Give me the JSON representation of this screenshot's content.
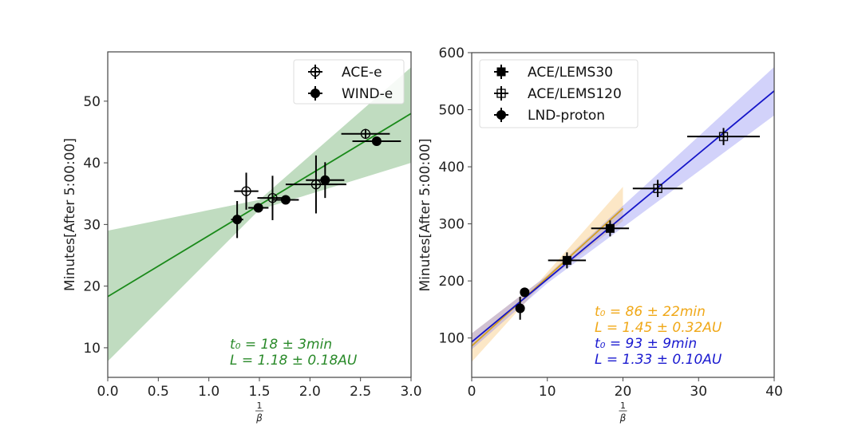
{
  "chart_data": [
    {
      "type": "scatter",
      "panel": "left",
      "xlabel_num": "1",
      "xlabel_den": "β",
      "ylabel": "Minutes[After 5:00:00]",
      "xlim": [
        0,
        3.0
      ],
      "ylim": [
        5.2,
        58
      ],
      "xticks": [
        0.0,
        0.5,
        1.0,
        1.5,
        2.0,
        2.5,
        3.0
      ],
      "xtick_labels": [
        "0.0",
        "0.5",
        "1.0",
        "1.5",
        "2.0",
        "2.5",
        "3.0"
      ],
      "yticks": [
        10,
        20,
        30,
        40,
        50
      ],
      "ytick_labels": [
        "10",
        "20",
        "30",
        "40",
        "50"
      ],
      "grid": false,
      "legend_position": "top-right",
      "series": [
        {
          "name": "ACE-e",
          "marker": "open-circle",
          "color": "#000000",
          "points": [
            {
              "x": 1.37,
              "y": 35.4,
              "xerr": 0.12,
              "yerr": 3.0
            },
            {
              "x": 1.63,
              "y": 34.3,
              "xerr": 0.15,
              "yerr": 3.6
            },
            {
              "x": 2.06,
              "y": 36.5,
              "xerr": 0.3,
              "yerr": 4.7
            },
            {
              "x": 2.55,
              "y": 44.7,
              "xerr": 0.24,
              "yerr": 0.8
            }
          ]
        },
        {
          "name": "WIND-e",
          "marker": "filled-circle",
          "color": "#000000",
          "points": [
            {
              "x": 1.28,
              "y": 30.8,
              "xerr": 0.06,
              "yerr": 3.0
            },
            {
              "x": 1.49,
              "y": 32.7,
              "xerr": 0.1,
              "yerr": 0.5
            },
            {
              "x": 1.76,
              "y": 34.0,
              "xerr": 0.13,
              "yerr": 0.4
            },
            {
              "x": 2.15,
              "y": 37.2,
              "xerr": 0.19,
              "yerr": 2.9
            },
            {
              "x": 2.66,
              "y": 43.5,
              "xerr": 0.24,
              "yerr": 0.5
            }
          ]
        }
      ],
      "fits": [
        {
          "name": "fit",
          "color": "#1a8a1a",
          "band_color": "#2e8b2e",
          "t0": 18.3,
          "slope": 9.9,
          "band": [
            {
              "x": 0,
              "lo": 7.8,
              "hi": 29.0
            },
            {
              "x": 1.5,
              "lo": 32.4,
              "hi": 34.0
            },
            {
              "x": 3.0,
              "lo": 40.0,
              "hi": 55.5
            }
          ]
        }
      ],
      "annotations": [
        {
          "text": "t₀ = 18 ± 3min",
          "color": "#2a8a2a"
        },
        {
          "text": "L = 1.18 ± 0.18AU",
          "color": "#2a8a2a"
        }
      ]
    },
    {
      "type": "scatter",
      "panel": "right",
      "xlabel_num": "1",
      "xlabel_den": "β",
      "ylabel": "Minutes[After 5:00:00]",
      "xlim": [
        0,
        40
      ],
      "ylim": [
        31,
        600
      ],
      "xticks": [
        0,
        10,
        20,
        30,
        40
      ],
      "xtick_labels": [
        "0",
        "10",
        "20",
        "30",
        "40"
      ],
      "yticks": [
        100,
        200,
        300,
        400,
        500,
        600
      ],
      "ytick_labels": [
        "100",
        "200",
        "300",
        "400",
        "500",
        "600"
      ],
      "grid": false,
      "legend_position": "top-left",
      "series": [
        {
          "name": "ACE/LEMS30",
          "marker": "filled-square",
          "color": "#000000",
          "points": [
            {
              "x": 12.6,
              "y": 236,
              "xerr": 2.5,
              "yerr": 14
            },
            {
              "x": 18.3,
              "y": 292,
              "xerr": 2.5,
              "yerr": 14
            }
          ]
        },
        {
          "name": "ACE/LEMS120",
          "marker": "open-square",
          "color": "#000000",
          "points": [
            {
              "x": 24.6,
              "y": 362,
              "xerr": 3.3,
              "yerr": 15
            },
            {
              "x": 33.3,
              "y": 453,
              "xerr": 4.8,
              "yerr": 15
            }
          ]
        },
        {
          "name": "LND-proton",
          "marker": "filled-circle",
          "color": "#000000",
          "points": [
            {
              "x": 6.4,
              "y": 152,
              "xerr": 0,
              "yerr": 20
            },
            {
              "x": 7.0,
              "y": 180,
              "xerr": 0,
              "yerr": 0
            }
          ]
        }
      ],
      "fits": [
        {
          "name": "orange-fit",
          "color": "#d4a020",
          "band_color": "#f5b041",
          "t0": 86,
          "slope": 12.05,
          "x_range": [
            0,
            20
          ],
          "band": [
            {
              "x": 0,
              "lo": 58,
              "hi": 108
            },
            {
              "x": 9,
              "lo": 190,
              "hi": 200
            },
            {
              "x": 20,
              "lo": 305,
              "hi": 365
            }
          ]
        },
        {
          "name": "blue-fit",
          "color": "#1515c8",
          "band_color": "#6b6bf0",
          "t0": 93,
          "slope": 11.0,
          "x_range": [
            0,
            40
          ],
          "band": [
            {
              "x": 0,
              "lo": 80,
              "hi": 108
            },
            {
              "x": 10,
              "lo": 196,
              "hi": 210
            },
            {
              "x": 40,
              "lo": 490,
              "hi": 575
            }
          ]
        }
      ],
      "annotations": [
        {
          "text": "t₀ = 86 ± 22min",
          "color": "#f0a818"
        },
        {
          "text": "L = 1.45 ± 0.32AU",
          "color": "#f0a818"
        },
        {
          "text": "t₀ = 93 ± 9min",
          "color": "#1a1ad0"
        },
        {
          "text": "L = 1.33 ± 0.10AU",
          "color": "#1a1ad0"
        }
      ]
    }
  ]
}
